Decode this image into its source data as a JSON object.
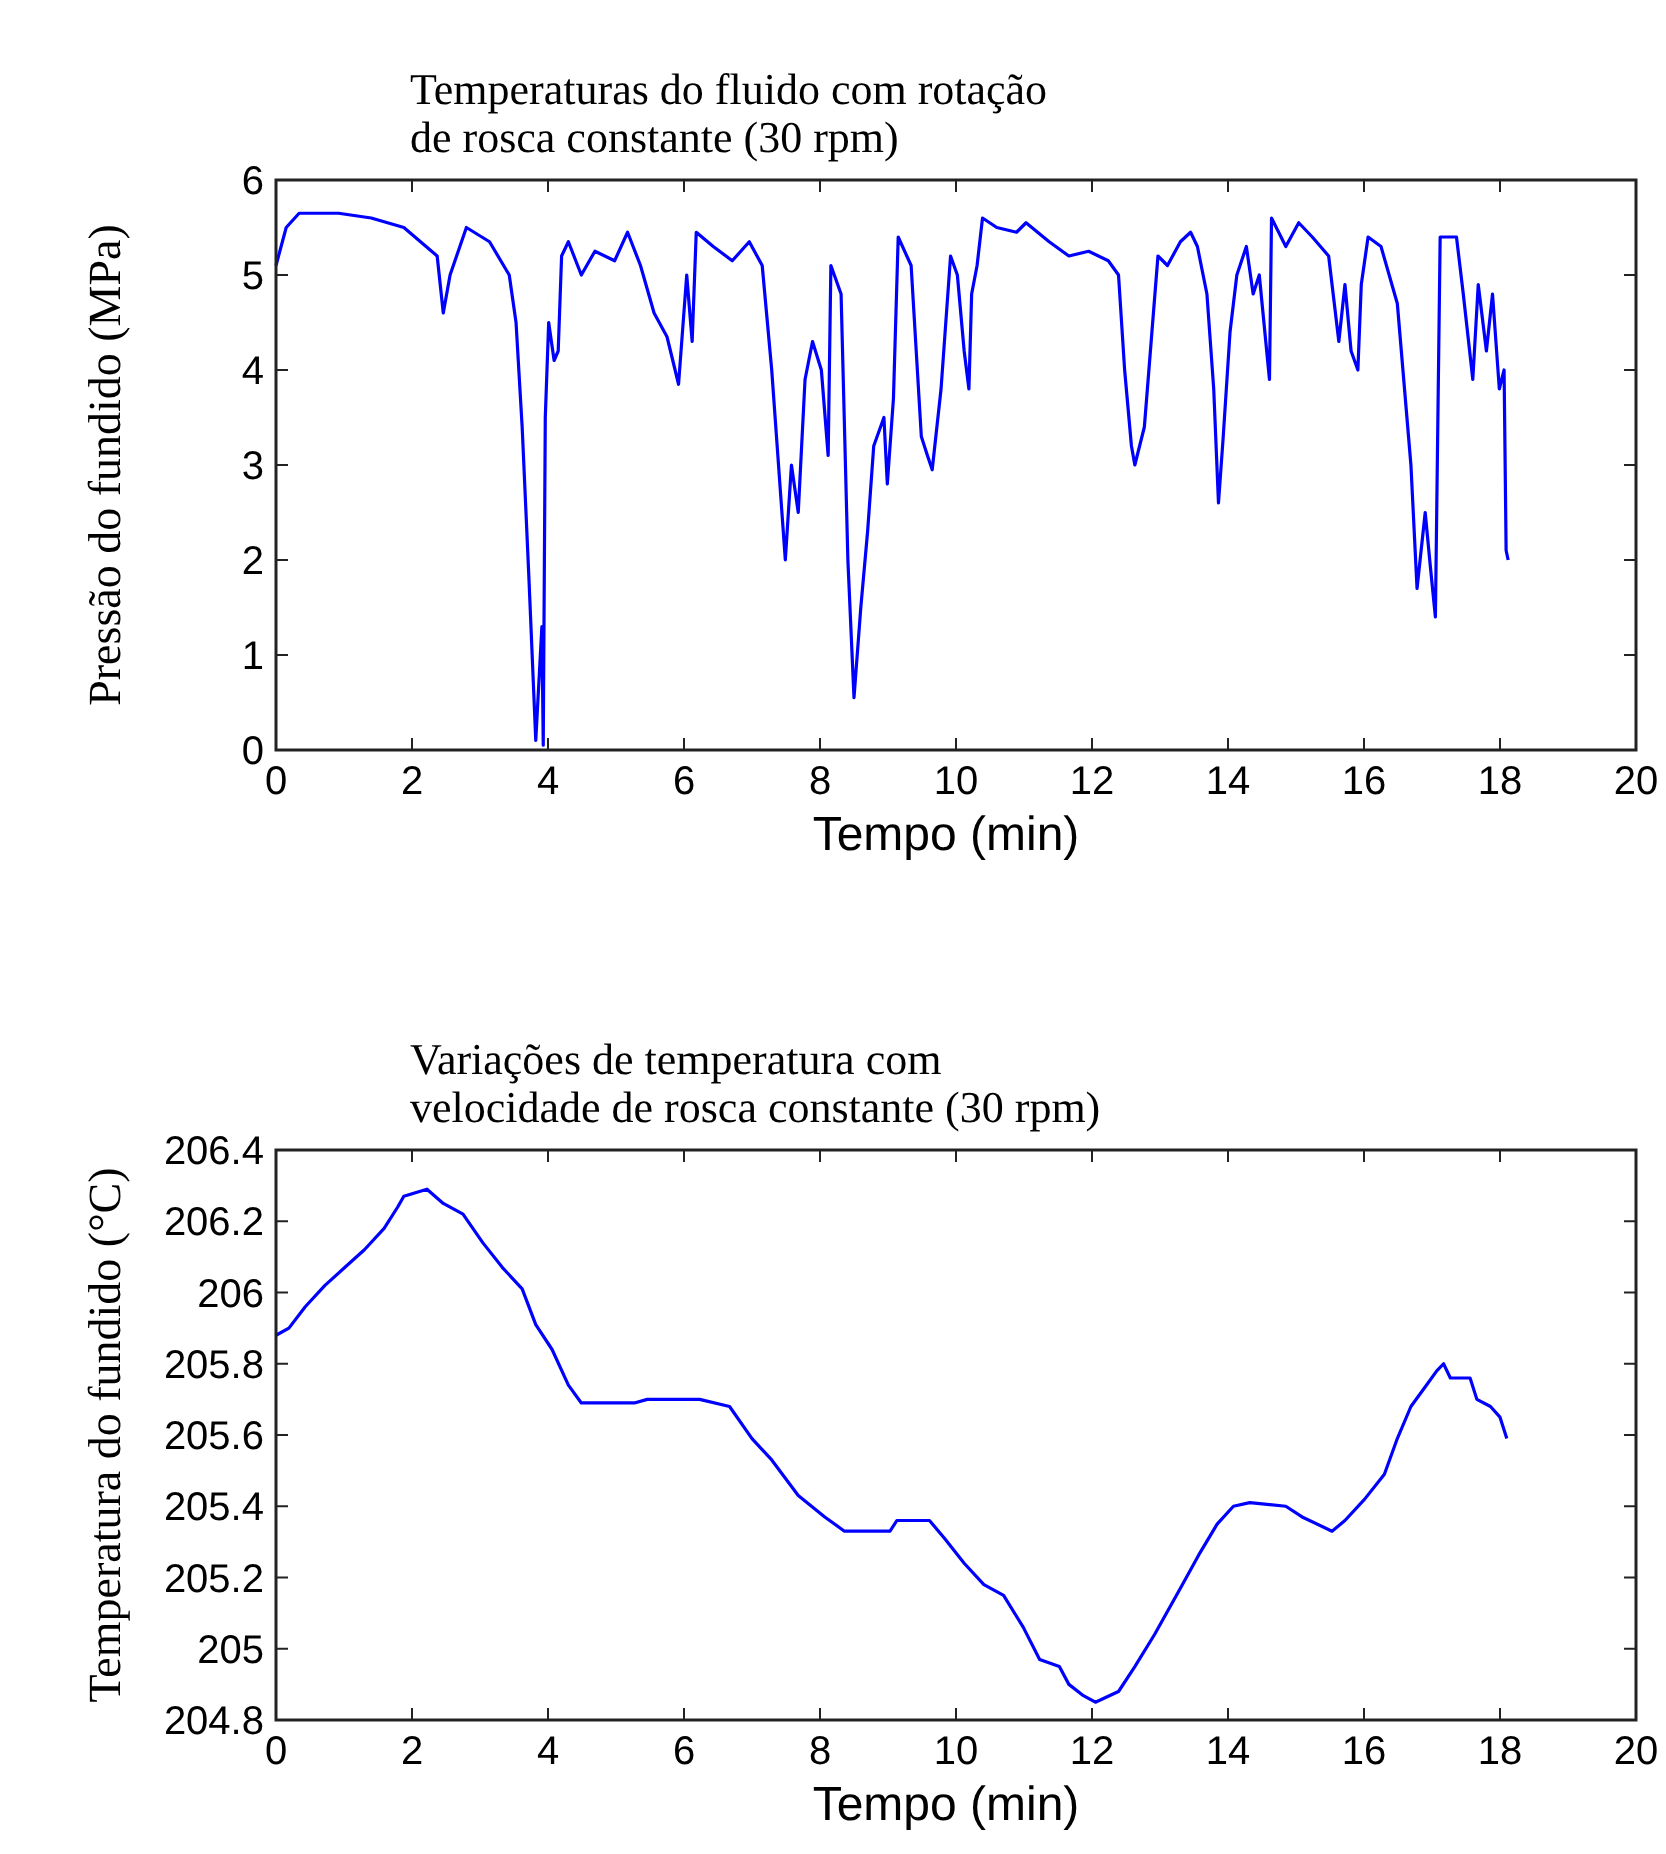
{
  "chart_data": [
    {
      "type": "line",
      "title": "Temperaturas do fluido com rotação\nde rosca constante (30 rpm)",
      "xlabel": "Tempo (min)",
      "ylabel": "Pressão do fundido (MPa)",
      "xlim": [
        0,
        20
      ],
      "ylim": [
        0,
        6
      ],
      "xticks": [
        0,
        2,
        4,
        6,
        8,
        10,
        12,
        14,
        16,
        18,
        20
      ],
      "yticks": [
        0,
        1,
        2,
        3,
        4,
        5,
        6
      ],
      "series": [
        {
          "color": "#0000ff",
          "x": [
            0,
            0.15,
            0.34,
            0.92,
            1.4,
            1.88,
            2.37,
            2.46,
            2.56,
            2.8,
            3.14,
            3.43,
            3.53,
            3.62,
            3.72,
            3.82,
            3.91,
            3.93,
            3.96,
            4.01,
            4.09,
            4.15,
            4.2,
            4.3,
            4.49,
            4.69,
            4.98,
            5.17,
            5.36,
            5.56,
            5.75,
            5.92,
            6.04,
            6.12,
            6.18,
            6.43,
            6.71,
            6.96,
            7.15,
            7.29,
            7.39,
            7.49,
            7.58,
            7.68,
            7.78,
            7.89,
            8.02,
            8.12,
            8.16,
            8.31,
            8.41,
            8.5,
            8.6,
            8.7,
            8.79,
            8.94,
            8.99,
            9.08,
            9.15,
            9.34,
            9.49,
            9.58,
            9.65,
            9.78,
            9.83,
            9.92,
            10.02,
            10.12,
            10.19,
            10.23,
            10.31,
            10.39,
            10.6,
            10.89,
            11.03,
            11.37,
            11.66,
            11.95,
            12.24,
            12.39,
            12.48,
            12.58,
            12.63,
            12.77,
            12.87,
            12.97,
            13.11,
            13.3,
            13.45,
            13.55,
            13.69,
            13.79,
            13.86,
            13.93,
            14.03,
            14.13,
            14.27,
            14.37,
            14.46,
            14.61,
            14.64,
            14.85,
            15.04,
            15.24,
            15.48,
            15.63,
            15.72,
            15.81,
            15.91,
            15.96,
            16.06,
            16.25,
            16.49,
            16.69,
            16.78,
            16.9,
            16.98,
            17.05,
            17.12,
            17.36,
            17.46,
            17.6,
            17.68,
            17.8,
            17.89,
            17.99,
            18.06,
            18.09,
            18.12
          ],
          "values": [
            5.1,
            5.5,
            5.65,
            5.65,
            5.6,
            5.5,
            5.2,
            4.6,
            5.0,
            5.5,
            5.35,
            5.0,
            4.5,
            3.4,
            1.8,
            0.1,
            1.3,
            0.05,
            3.5,
            4.5,
            4.1,
            4.2,
            5.2,
            5.35,
            5.0,
            5.25,
            5.15,
            5.45,
            5.1,
            4.6,
            4.35,
            3.85,
            5.0,
            4.3,
            5.45,
            5.3,
            5.15,
            5.35,
            5.1,
            4.0,
            3.0,
            2.0,
            3.0,
            2.5,
            3.9,
            4.3,
            4.0,
            3.1,
            5.1,
            4.8,
            2.0,
            0.55,
            1.5,
            2.3,
            3.2,
            3.5,
            2.8,
            3.7,
            5.4,
            5.1,
            3.3,
            3.1,
            2.95,
            3.8,
            4.3,
            5.2,
            5.0,
            4.2,
            3.8,
            4.8,
            5.1,
            5.6,
            5.5,
            5.45,
            5.55,
            5.35,
            5.2,
            5.25,
            5.15,
            5.0,
            4.0,
            3.2,
            3.0,
            3.4,
            4.3,
            5.2,
            5.1,
            5.35,
            5.45,
            5.3,
            4.8,
            3.8,
            2.6,
            3.3,
            4.4,
            5.0,
            5.3,
            4.8,
            5.0,
            3.9,
            5.6,
            5.3,
            5.55,
            5.4,
            5.2,
            4.3,
            4.9,
            4.2,
            4.0,
            4.9,
            5.4,
            5.3,
            4.7,
            3.0,
            1.7,
            2.5,
            1.9,
            1.4,
            5.4,
            5.4,
            4.8,
            3.9,
            4.9,
            4.2,
            4.8,
            3.8,
            4.0,
            2.1,
            2.0
          ]
        }
      ]
    },
    {
      "type": "line",
      "title": "Variações de temperatura com\nvelocidade de rosca constante (30 rpm)",
      "xlabel": "Tempo (min)",
      "ylabel": "Temperatura do fundido (°C)",
      "xlim": [
        0,
        20
      ],
      "ylim": [
        204.8,
        206.4
      ],
      "xticks": [
        0,
        2,
        4,
        6,
        8,
        10,
        12,
        14,
        16,
        18,
        20
      ],
      "yticks": [
        204.8,
        205,
        205.2,
        205.4,
        205.6,
        205.8,
        206,
        206.2,
        206.4
      ],
      "series": [
        {
          "color": "#0000ff",
          "x": [
            0,
            0.19,
            0.43,
            0.72,
            1.01,
            1.3,
            1.59,
            1.79,
            1.88,
            2.22,
            2.46,
            2.75,
            3.04,
            3.33,
            3.62,
            3.82,
            4.06,
            4.3,
            4.49,
            5.27,
            5.46,
            6.23,
            6.67,
            7.0,
            7.29,
            7.68,
            8.07,
            8.36,
            9.03,
            9.13,
            9.49,
            9.61,
            9.83,
            10.12,
            10.41,
            10.7,
            10.99,
            11.23,
            11.52,
            11.66,
            11.86,
            12.05,
            12.39,
            12.63,
            12.92,
            13.3,
            13.59,
            13.84,
            14.08,
            14.32,
            14.85,
            15.09,
            15.53,
            15.72,
            16.01,
            16.3,
            16.49,
            16.69,
            16.88,
            17.07,
            17.17,
            17.27,
            17.56,
            17.66,
            17.86,
            18.0,
            18.1
          ],
          "values": [
            205.88,
            205.9,
            205.96,
            206.02,
            206.07,
            206.12,
            206.18,
            206.24,
            206.27,
            206.29,
            206.25,
            206.22,
            206.14,
            206.07,
            206.01,
            205.91,
            205.84,
            205.74,
            205.69,
            205.69,
            205.7,
            205.7,
            205.68,
            205.59,
            205.53,
            205.43,
            205.37,
            205.33,
            205.33,
            205.36,
            205.36,
            205.36,
            205.31,
            205.24,
            205.18,
            205.15,
            205.06,
            204.97,
            204.95,
            204.9,
            204.87,
            204.85,
            204.88,
            204.95,
            205.04,
            205.17,
            205.27,
            205.35,
            205.4,
            205.41,
            205.4,
            205.37,
            205.33,
            205.36,
            205.42,
            205.49,
            205.59,
            205.68,
            205.73,
            205.78,
            205.8,
            205.76,
            205.76,
            205.7,
            205.68,
            205.65,
            205.59
          ]
        }
      ]
    }
  ]
}
